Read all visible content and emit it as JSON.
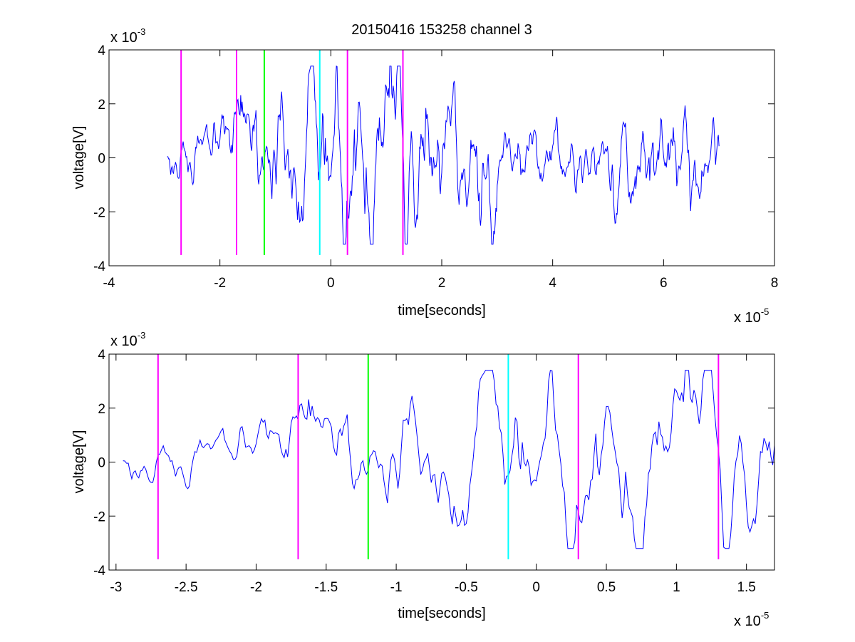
{
  "colors": {
    "signal": "#0000ff",
    "magenta": "#ff00ff",
    "green": "#00ff00",
    "cyan": "#00ffff",
    "axis": "#000000",
    "background": "#ffffff"
  },
  "chart_data": [
    {
      "type": "line",
      "title": "20150416 153258 channel 3",
      "xlabel": "time[seconds]",
      "ylabel": "voltage[V]",
      "xlim": [
        -4,
        8
      ],
      "ylim": [
        -4,
        4
      ],
      "xticks": [
        -4,
        -2,
        0,
        2,
        4,
        6,
        8
      ],
      "xtick_labels": [
        "-4",
        "-2",
        "0",
        "2",
        "4",
        "6",
        "8"
      ],
      "yticks": [
        -4,
        -2,
        0,
        2,
        4
      ],
      "ytick_labels": [
        "-4",
        "-2",
        "0",
        "2",
        "4"
      ],
      "x_exponent": {
        "base": "x 10",
        "power": "-5"
      },
      "y_exponent": {
        "base": "x 10",
        "power": "-3"
      },
      "grid": false,
      "signal": {
        "x_start": -2.95,
        "x_end": 7.0,
        "seed": 17,
        "amplitude": 1.0
      },
      "vlines": [
        {
          "x": -2.7,
          "y_range": [
            -3.6,
            4.0
          ],
          "color": "magenta"
        },
        {
          "x": -1.7,
          "y_range": [
            -3.6,
            4.0
          ],
          "color": "magenta"
        },
        {
          "x": -1.2,
          "y_range": [
            -3.6,
            4.0
          ],
          "color": "green"
        },
        {
          "x": -0.2,
          "y_range": [
            -3.6,
            4.0
          ],
          "color": "cyan"
        },
        {
          "x": 0.3,
          "y_range": [
            -3.6,
            4.0
          ],
          "color": "magenta"
        },
        {
          "x": 1.3,
          "y_range": [
            -3.6,
            4.0
          ],
          "color": "magenta"
        }
      ]
    },
    {
      "type": "line",
      "title": "",
      "xlabel": "time[seconds]",
      "ylabel": "voltage[V]",
      "xlim": [
        -3.05,
        1.7
      ],
      "ylim": [
        -4,
        4
      ],
      "xticks": [
        -3,
        -2.5,
        -2,
        -1.5,
        -1,
        -0.5,
        0,
        0.5,
        1,
        1.5
      ],
      "xtick_labels": [
        "-3",
        "-2.5",
        "-2",
        "-1.5",
        "-1",
        "-0.5",
        "0",
        "0.5",
        "1",
        "1.5"
      ],
      "yticks": [
        -4,
        -2,
        0,
        2,
        4
      ],
      "ytick_labels": [
        "-4",
        "-2",
        "0",
        "2",
        "4"
      ],
      "x_exponent": {
        "base": "x 10",
        "power": "-5"
      },
      "y_exponent": {
        "base": "x 10",
        "power": "-3"
      },
      "grid": false,
      "signal": {
        "x_start": -2.95,
        "x_end": 1.7,
        "seed": 17,
        "amplitude": 1.0
      },
      "vlines": [
        {
          "x": -2.7,
          "y_range": [
            -3.6,
            4.0
          ],
          "color": "magenta"
        },
        {
          "x": -1.7,
          "y_range": [
            -3.6,
            4.0
          ],
          "color": "magenta"
        },
        {
          "x": -1.2,
          "y_range": [
            -3.6,
            4.0
          ],
          "color": "green"
        },
        {
          "x": -0.2,
          "y_range": [
            -3.6,
            4.0
          ],
          "color": "cyan"
        },
        {
          "x": 0.3,
          "y_range": [
            -3.6,
            4.0
          ],
          "color": "magenta"
        },
        {
          "x": 1.3,
          "y_range": [
            -3.6,
            4.0
          ],
          "color": "magenta"
        }
      ]
    }
  ]
}
